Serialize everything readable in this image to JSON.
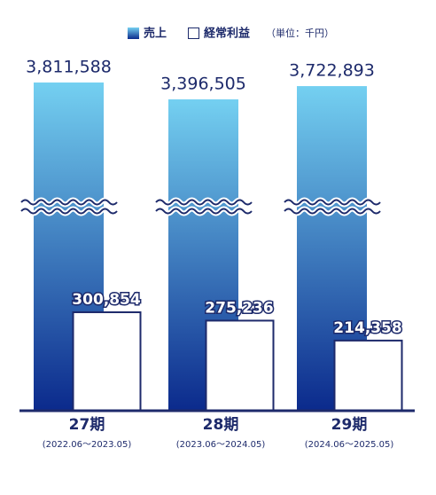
{
  "chart_data": {
    "type": "bar",
    "unit": "（単位：千円）",
    "categories": [
      "27期",
      "28期",
      "29期"
    ],
    "periods": [
      "(2022.06〜2023.05)",
      "(2023.06〜2024.05)",
      "(2024.06〜2025.05)"
    ],
    "axis_break": true,
    "series": [
      {
        "name": "売上",
        "color": "#0b2a8c",
        "gradient_top": "#74d0f1",
        "values": [
          3811588,
          3396505,
          3722893
        ],
        "value_labels": [
          "3,811,588",
          "3,396,505",
          "3,722,893"
        ]
      },
      {
        "name": "経常利益",
        "color": "#ffffff",
        "values": [
          300854,
          275236,
          214358
        ],
        "value_labels": [
          "300,854",
          "275,236",
          "214,358"
        ]
      }
    ]
  }
}
